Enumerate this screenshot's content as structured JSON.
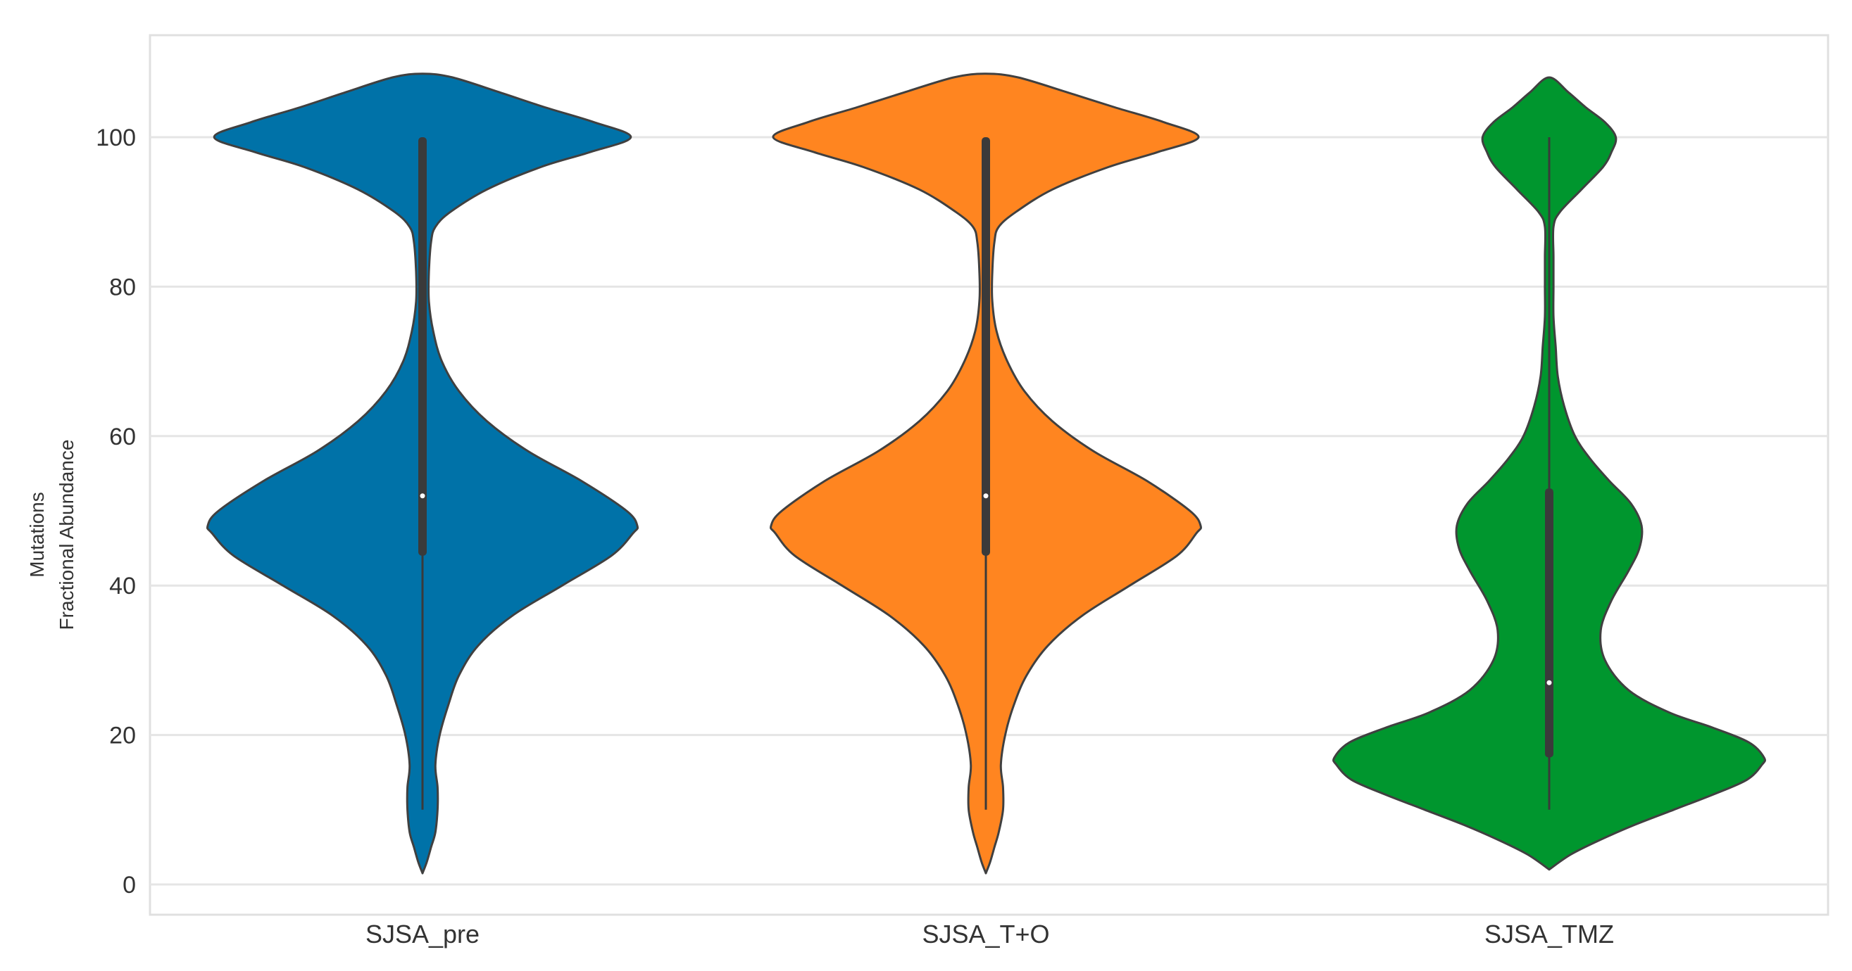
{
  "chart_data": {
    "type": "violin",
    "ylabel": [
      "Mutations",
      "Fractional Abundance"
    ],
    "xlabel": "",
    "ylim": [
      -4,
      112
    ],
    "yticks": [
      0,
      20,
      40,
      60,
      80,
      100
    ],
    "ytick_labels": [
      "0",
      "20",
      "40",
      "60",
      "80",
      "100"
    ],
    "grid": "horizontal",
    "colors": {
      "background": "#ffffff",
      "grid": "#e5e5e5",
      "frame": "#e0e0e0",
      "outline": "#404040",
      "box": "#3a3a3a",
      "median": "#ffffff"
    },
    "categories": [
      "SJSA_pre",
      "SJSA_T+O",
      "SJSA_TMZ"
    ],
    "series": [
      {
        "category": "SJSA_pre",
        "color": "#0072a8",
        "quartiles": {
          "min": 10,
          "q1": 44,
          "median": 52,
          "q3": 100,
          "max": 100
        },
        "density_profile": [
          [
            1.5,
            0.0
          ],
          [
            3,
            0.02
          ],
          [
            5,
            0.04
          ],
          [
            7,
            0.06
          ],
          [
            10,
            0.07
          ],
          [
            13,
            0.07
          ],
          [
            16,
            0.06
          ],
          [
            20,
            0.08
          ],
          [
            24,
            0.12
          ],
          [
            28,
            0.17
          ],
          [
            32,
            0.26
          ],
          [
            36,
            0.42
          ],
          [
            40,
            0.65
          ],
          [
            44,
            0.88
          ],
          [
            47,
            0.98
          ],
          [
            48,
            1.0
          ],
          [
            50,
            0.95
          ],
          [
            54,
            0.74
          ],
          [
            58,
            0.49
          ],
          [
            62,
            0.3
          ],
          [
            66,
            0.17
          ],
          [
            70,
            0.09
          ],
          [
            74,
            0.05
          ],
          [
            78,
            0.03
          ],
          [
            82,
            0.03
          ],
          [
            86,
            0.04
          ],
          [
            88,
            0.06
          ],
          [
            90,
            0.13
          ],
          [
            93,
            0.3
          ],
          [
            96,
            0.55
          ],
          [
            98,
            0.78
          ],
          [
            100,
            0.97
          ],
          [
            102,
            0.8
          ],
          [
            104,
            0.57
          ],
          [
            106,
            0.36
          ],
          [
            108,
            0.14
          ],
          [
            108.5,
            0.0
          ]
        ]
      },
      {
        "category": "SJSA_T+O",
        "color": "#ff8520",
        "quartiles": {
          "min": 10,
          "q1": 44,
          "median": 52,
          "q3": 100,
          "max": 100
        },
        "density_profile": [
          [
            1.5,
            0.0
          ],
          [
            3,
            0.02
          ],
          [
            5,
            0.04
          ],
          [
            7,
            0.06
          ],
          [
            10,
            0.08
          ],
          [
            13,
            0.08
          ],
          [
            16,
            0.07
          ],
          [
            20,
            0.09
          ],
          [
            24,
            0.13
          ],
          [
            28,
            0.19
          ],
          [
            32,
            0.29
          ],
          [
            36,
            0.45
          ],
          [
            40,
            0.67
          ],
          [
            44,
            0.89
          ],
          [
            47,
            0.98
          ],
          [
            48,
            1.0
          ],
          [
            50,
            0.95
          ],
          [
            54,
            0.75
          ],
          [
            58,
            0.5
          ],
          [
            62,
            0.31
          ],
          [
            66,
            0.18
          ],
          [
            70,
            0.1
          ],
          [
            74,
            0.05
          ],
          [
            78,
            0.03
          ],
          [
            82,
            0.03
          ],
          [
            86,
            0.04
          ],
          [
            88,
            0.06
          ],
          [
            90,
            0.14
          ],
          [
            93,
            0.31
          ],
          [
            96,
            0.57
          ],
          [
            98,
            0.8
          ],
          [
            100,
            0.99
          ],
          [
            102,
            0.83
          ],
          [
            104,
            0.6
          ],
          [
            106,
            0.38
          ],
          [
            108,
            0.15
          ],
          [
            108.5,
            0.0
          ]
        ]
      },
      {
        "category": "SJSA_TMZ",
        "color": "#00962e",
        "quartiles": {
          "min": 10,
          "q1": 17,
          "median": 27,
          "q3": 53,
          "max": 100
        },
        "density_profile": [
          [
            2,
            0.0
          ],
          [
            4,
            0.1
          ],
          [
            6,
            0.24
          ],
          [
            8,
            0.4
          ],
          [
            10,
            0.58
          ],
          [
            12,
            0.76
          ],
          [
            14,
            0.92
          ],
          [
            16,
            0.99
          ],
          [
            17,
            1.0
          ],
          [
            19,
            0.93
          ],
          [
            21,
            0.76
          ],
          [
            23,
            0.56
          ],
          [
            26,
            0.37
          ],
          [
            30,
            0.26
          ],
          [
            34,
            0.24
          ],
          [
            38,
            0.29
          ],
          [
            42,
            0.37
          ],
          [
            45,
            0.42
          ],
          [
            48,
            0.43
          ],
          [
            51,
            0.38
          ],
          [
            54,
            0.28
          ],
          [
            57,
            0.19
          ],
          [
            60,
            0.12
          ],
          [
            64,
            0.07
          ],
          [
            68,
            0.04
          ],
          [
            72,
            0.03
          ],
          [
            76,
            0.02
          ],
          [
            80,
            0.02
          ],
          [
            84,
            0.02
          ],
          [
            88,
            0.02
          ],
          [
            90,
            0.05
          ],
          [
            93,
            0.15
          ],
          [
            96,
            0.25
          ],
          [
            98,
            0.29
          ],
          [
            100,
            0.31
          ],
          [
            102,
            0.26
          ],
          [
            104,
            0.17
          ],
          [
            106,
            0.09
          ],
          [
            108,
            0.0
          ]
        ]
      }
    ]
  }
}
